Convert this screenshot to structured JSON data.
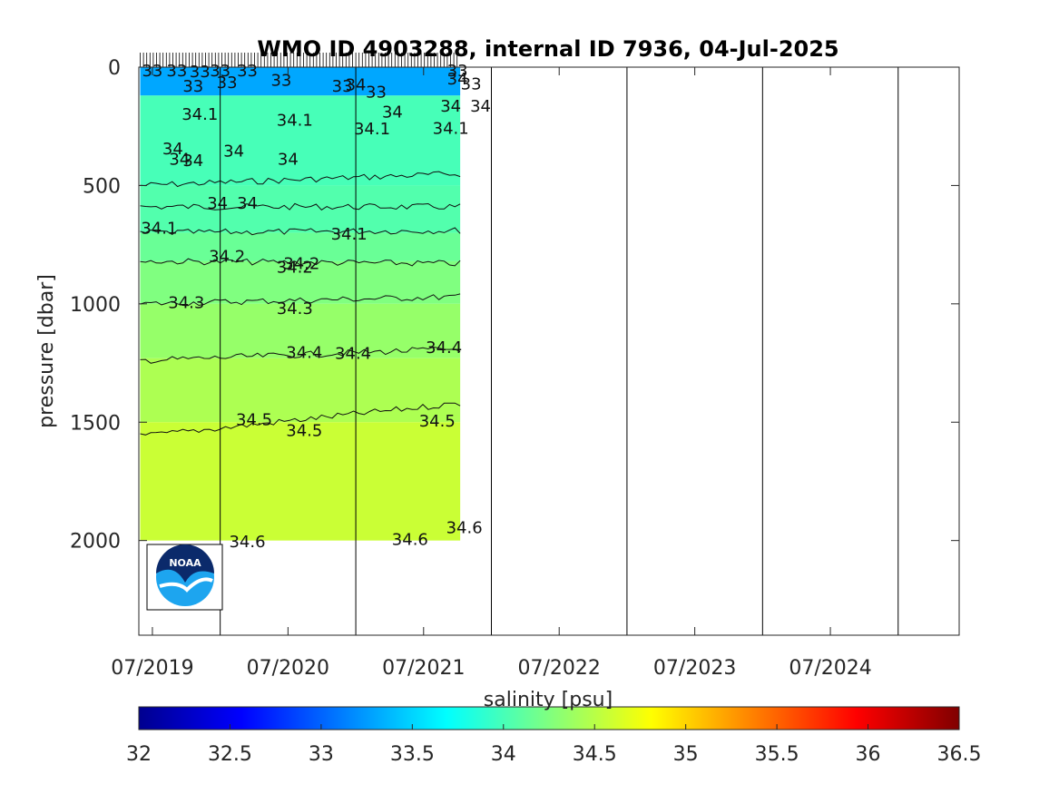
{
  "chart_data": {
    "type": "heatmap",
    "title": "WMO ID 4903288, internal ID 7936, 04-Jul-2025",
    "ylabel": "pressure [dbar]",
    "colorbar_label": "salinity [psu]",
    "x_ticks": [
      "07/2019",
      "07/2020",
      "07/2021",
      "07/2022",
      "07/2023",
      "07/2024"
    ],
    "y_ticks": [
      "0",
      "500",
      "1000",
      "1500",
      "2000"
    ],
    "y_tick_values": [
      0,
      500,
      1000,
      1500,
      2000
    ],
    "ylim": [
      2400,
      0
    ],
    "xlim_years": [
      2019.4,
      2025.45
    ],
    "x_tick_years": [
      2019.5,
      2020.5,
      2021.5,
      2022.5,
      2023.5,
      2024.5
    ],
    "year_lines": [
      2020.0,
      2021.0,
      2022.0,
      2023.0,
      2024.0,
      2025.0
    ],
    "data_extent_years": [
      2019.41,
      2021.77
    ],
    "max_pressure": 2000,
    "colormap": "jet",
    "colorbar_ticks": [
      "32",
      "32.5",
      "33",
      "33.5",
      "34",
      "34.5",
      "35",
      "35.5",
      "36",
      "36.5"
    ],
    "clim": [
      32,
      36.5
    ],
    "salinity_layers": [
      {
        "p_top": 0,
        "p_bot": 120,
        "salinity": 33.3
      },
      {
        "p_top": 120,
        "p_bot": 500,
        "salinity": 34.0
      },
      {
        "p_top": 500,
        "p_bot": 700,
        "salinity": 34.05
      },
      {
        "p_top": 700,
        "p_bot": 820,
        "salinity": 34.15
      },
      {
        "p_top": 820,
        "p_bot": 1000,
        "salinity": 34.25
      },
      {
        "p_top": 1000,
        "p_bot": 1230,
        "salinity": 34.35
      },
      {
        "p_top": 1230,
        "p_bot": 1500,
        "salinity": 34.45
      },
      {
        "p_top": 1500,
        "p_bot": 2000,
        "salinity": 34.58
      }
    ],
    "contours": [
      {
        "level": "34.1",
        "p_start": 500,
        "p_end": 450
      },
      {
        "level": "34",
        "p_start": 590,
        "p_end": 590
      },
      {
        "level": "34.1",
        "p_start": 700,
        "p_end": 690
      },
      {
        "level": "34.2",
        "p_start": 820,
        "p_end": 830
      },
      {
        "level": "34.3",
        "p_start": 1000,
        "p_end": 970
      },
      {
        "level": "34.4",
        "p_start": 1240,
        "p_end": 1190
      },
      {
        "level": "34.5",
        "p_start": 1560,
        "p_end": 1420
      }
    ],
    "contour_labels": [
      {
        "text": "34.1",
        "x": 2019.85,
        "p": 200
      },
      {
        "text": "34.1",
        "x": 2020.55,
        "p": 225
      },
      {
        "text": "34.1",
        "x": 2021.12,
        "p": 260
      },
      {
        "text": "34.1",
        "x": 2021.7,
        "p": 258
      },
      {
        "text": "34",
        "x": 2021.27,
        "p": 190
      },
      {
        "text": "34",
        "x": 2019.65,
        "p": 345
      },
      {
        "text": "34",
        "x": 2019.8,
        "p": 395
      },
      {
        "text": "34",
        "x": 2020.1,
        "p": 355
      },
      {
        "text": "34",
        "x": 2020.5,
        "p": 390
      },
      {
        "text": "34",
        "x": 2021.0,
        "p": 75
      },
      {
        "text": "34",
        "x": 2021.75,
        "p": 50
      },
      {
        "text": "34",
        "x": 2021.7,
        "p": 165
      },
      {
        "text": "34",
        "x": 2021.92,
        "p": 165
      },
      {
        "text": "34",
        "x": 2019.7,
        "p": 390
      },
      {
        "text": "34",
        "x": 2019.98,
        "p": 575
      },
      {
        "text": "34",
        "x": 2020.2,
        "p": 575
      },
      {
        "text": "34.1",
        "x": 2019.55,
        "p": 680
      },
      {
        "text": "34.1",
        "x": 2020.95,
        "p": 705
      },
      {
        "text": "34.2",
        "x": 2020.05,
        "p": 800
      },
      {
        "text": "34.2",
        "x": 2020.6,
        "p": 830
      },
      {
        "text": "34.2",
        "x": 2020.55,
        "p": 845
      },
      {
        "text": "34.3",
        "x": 2019.75,
        "p": 995
      },
      {
        "text": "34.3",
        "x": 2020.55,
        "p": 1020
      },
      {
        "text": "34.4",
        "x": 2020.62,
        "p": 1205
      },
      {
        "text": "34.4",
        "x": 2020.98,
        "p": 1210
      },
      {
        "text": "34.4",
        "x": 2021.65,
        "p": 1185
      },
      {
        "text": "34.5",
        "x": 2020.25,
        "p": 1490
      },
      {
        "text": "34.5",
        "x": 2020.62,
        "p": 1535
      },
      {
        "text": "34.5",
        "x": 2021.6,
        "p": 1495
      },
      {
        "text": "34.6",
        "x": 2020.2,
        "p": 2005
      },
      {
        "text": "34.6",
        "x": 2021.4,
        "p": 1995
      },
      {
        "text": "34.6",
        "x": 2021.8,
        "p": 1945
      },
      {
        "text": "33",
        "x": 2019.5,
        "p": 15
      },
      {
        "text": "33",
        "x": 2019.68,
        "p": 15
      },
      {
        "text": "33",
        "x": 2019.85,
        "p": 20
      },
      {
        "text": "33",
        "x": 2020.0,
        "p": 15
      },
      {
        "text": "33",
        "x": 2020.2,
        "p": 15
      },
      {
        "text": "33",
        "x": 2019.8,
        "p": 80
      },
      {
        "text": "33",
        "x": 2020.05,
        "p": 65
      },
      {
        "text": "33",
        "x": 2020.45,
        "p": 55
      },
      {
        "text": "33",
        "x": 2020.9,
        "p": 80
      },
      {
        "text": "33",
        "x": 2021.15,
        "p": 105
      },
      {
        "text": "33",
        "x": 2021.75,
        "p": 15
      },
      {
        "text": "33",
        "x": 2021.85,
        "p": 70
      }
    ]
  }
}
